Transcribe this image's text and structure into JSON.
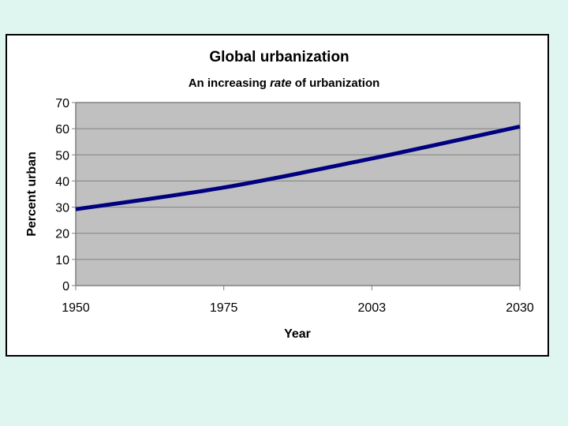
{
  "chart_data": {
    "type": "line",
    "title": "Global urbanization",
    "subtitle_parts": [
      "An increasing ",
      "rate",
      " of urbanization"
    ],
    "xlabel": "Year",
    "ylabel": "Percent urban",
    "categories": [
      "1950",
      "1975",
      "2003",
      "2030"
    ],
    "series": [
      {
        "values": [
          29.2,
          37.5,
          48.6,
          60.8
        ],
        "color": "#000080"
      }
    ],
    "ylim": [
      0,
      70
    ],
    "yticks": [
      0,
      10,
      20,
      30,
      40,
      50,
      60,
      70
    ],
    "grid": true,
    "plot_background": "#c0c0c0",
    "smoothed": true
  }
}
